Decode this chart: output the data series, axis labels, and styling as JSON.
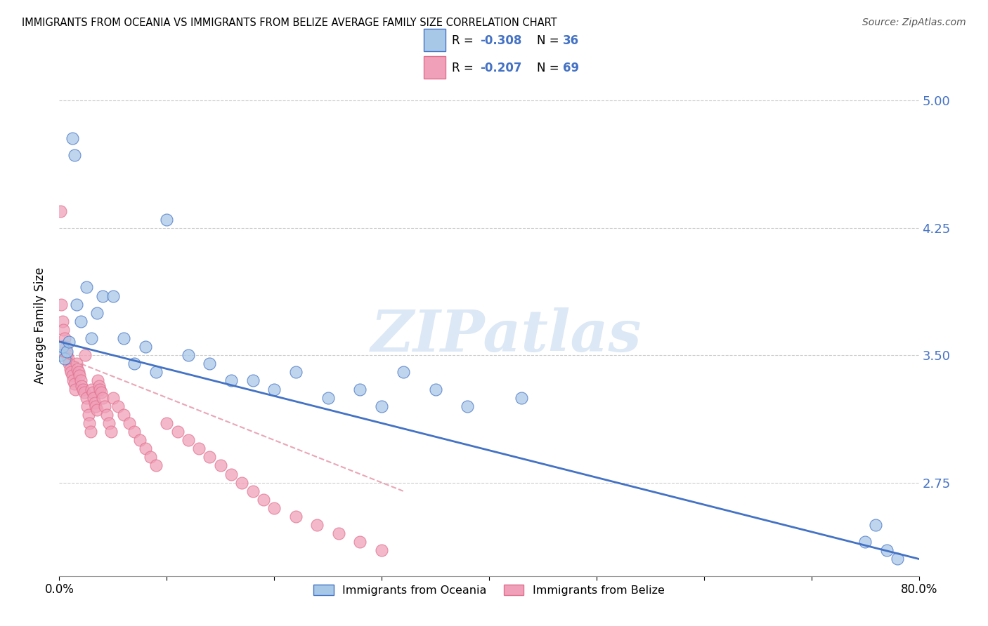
{
  "title": "IMMIGRANTS FROM OCEANIA VS IMMIGRANTS FROM BELIZE AVERAGE FAMILY SIZE CORRELATION CHART",
  "source": "Source: ZipAtlas.com",
  "ylabel": "Average Family Size",
  "yticks": [
    2.75,
    3.5,
    4.25,
    5.0
  ],
  "xlim": [
    0.0,
    0.8
  ],
  "ylim": [
    2.2,
    5.15
  ],
  "legend_oceania": "Immigrants from Oceania",
  "legend_belize": "Immigrants from Belize",
  "R_oceania": -0.308,
  "N_oceania": 36,
  "R_belize": -0.207,
  "N_belize": 69,
  "color_oceania": "#a8c8e8",
  "color_belize": "#f0a0b8",
  "line_oceania": "#4472c4",
  "watermark_color": "#dce8f5",
  "oceania_x": [
    0.001,
    0.003,
    0.005,
    0.007,
    0.009,
    0.012,
    0.014,
    0.016,
    0.02,
    0.025,
    0.03,
    0.035,
    0.04,
    0.05,
    0.06,
    0.07,
    0.08,
    0.09,
    0.1,
    0.12,
    0.14,
    0.16,
    0.18,
    0.2,
    0.22,
    0.25,
    0.28,
    0.3,
    0.32,
    0.35,
    0.38,
    0.43,
    0.75,
    0.76,
    0.77,
    0.78
  ],
  "oceania_y": [
    3.5,
    3.55,
    3.48,
    3.52,
    3.58,
    4.78,
    4.68,
    3.8,
    3.7,
    3.9,
    3.6,
    3.75,
    3.85,
    3.85,
    3.6,
    3.45,
    3.55,
    3.4,
    4.3,
    3.5,
    3.45,
    3.35,
    3.35,
    3.3,
    3.4,
    3.25,
    3.3,
    3.2,
    3.4,
    3.3,
    3.2,
    3.25,
    2.4,
    2.5,
    2.35,
    2.3
  ],
  "belize_x": [
    0.001,
    0.002,
    0.003,
    0.004,
    0.005,
    0.006,
    0.007,
    0.008,
    0.009,
    0.01,
    0.011,
    0.012,
    0.013,
    0.014,
    0.015,
    0.016,
    0.017,
    0.018,
    0.019,
    0.02,
    0.021,
    0.022,
    0.023,
    0.024,
    0.025,
    0.026,
    0.027,
    0.028,
    0.029,
    0.03,
    0.031,
    0.032,
    0.033,
    0.034,
    0.035,
    0.036,
    0.037,
    0.038,
    0.039,
    0.04,
    0.042,
    0.044,
    0.046,
    0.048,
    0.05,
    0.055,
    0.06,
    0.065,
    0.07,
    0.075,
    0.08,
    0.085,
    0.09,
    0.1,
    0.11,
    0.12,
    0.13,
    0.14,
    0.15,
    0.16,
    0.17,
    0.18,
    0.19,
    0.2,
    0.22,
    0.24,
    0.26,
    0.28,
    0.3
  ],
  "belize_y": [
    4.35,
    3.8,
    3.7,
    3.65,
    3.6,
    3.55,
    3.5,
    3.48,
    3.45,
    3.42,
    3.4,
    3.38,
    3.35,
    3.33,
    3.3,
    3.45,
    3.42,
    3.4,
    3.38,
    3.35,
    3.32,
    3.3,
    3.28,
    3.5,
    3.25,
    3.2,
    3.15,
    3.1,
    3.05,
    3.3,
    3.28,
    3.25,
    3.22,
    3.2,
    3.18,
    3.35,
    3.32,
    3.3,
    3.28,
    3.25,
    3.2,
    3.15,
    3.1,
    3.05,
    3.25,
    3.2,
    3.15,
    3.1,
    3.05,
    3.0,
    2.95,
    2.9,
    2.85,
    3.1,
    3.05,
    3.0,
    2.95,
    2.9,
    2.85,
    2.8,
    2.75,
    2.7,
    2.65,
    2.6,
    2.55,
    2.5,
    2.45,
    2.4,
    2.35
  ],
  "oceania_line_x0": 0.0,
  "oceania_line_y0": 3.58,
  "oceania_line_x1": 0.8,
  "oceania_line_y1": 2.3,
  "belize_line_x0": 0.0,
  "belize_line_y0": 3.5,
  "belize_line_x1": 0.32,
  "belize_line_y1": 2.7
}
